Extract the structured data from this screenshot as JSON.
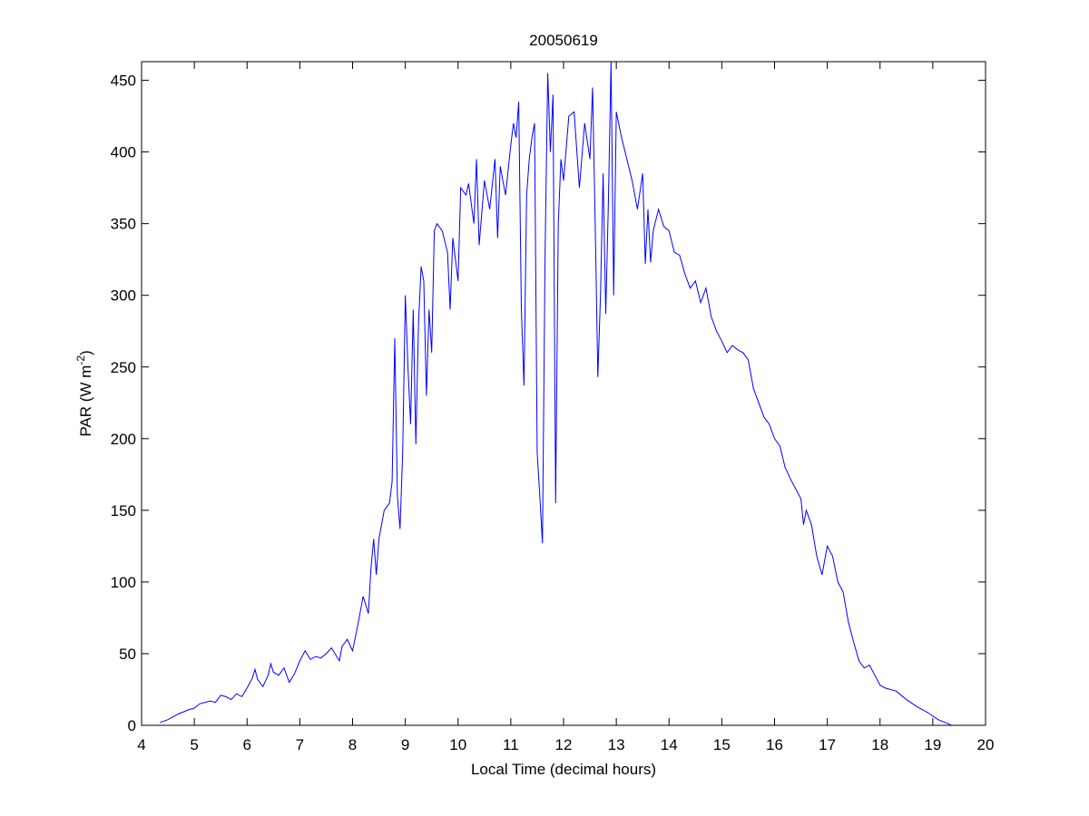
{
  "chart_data": {
    "type": "line",
    "title": "20050619",
    "xlabel": "Local Time (decimal hours)",
    "ylabel": "PAR (W m",
    "ylabel_superscript": "-2",
    "ylabel_end": ")",
    "color": "#0000ff",
    "xlim": [
      4,
      20
    ],
    "xticks": [
      4,
      5,
      6,
      7,
      8,
      9,
      10,
      11,
      12,
      13,
      14,
      15,
      16,
      17,
      18,
      19,
      20
    ],
    "ylim": [
      0,
      463
    ],
    "yticks": [
      0,
      50,
      100,
      150,
      200,
      250,
      300,
      350,
      400,
      450
    ],
    "x": [
      4.35,
      4.5,
      4.7,
      4.9,
      5.0,
      5.1,
      5.3,
      5.4,
      5.5,
      5.6,
      5.7,
      5.8,
      5.9,
      6.0,
      6.1,
      6.15,
      6.2,
      6.3,
      6.4,
      6.45,
      6.5,
      6.6,
      6.7,
      6.8,
      6.9,
      7.0,
      7.1,
      7.2,
      7.3,
      7.4,
      7.5,
      7.6,
      7.7,
      7.75,
      7.8,
      7.9,
      8.0,
      8.1,
      8.2,
      8.3,
      8.35,
      8.4,
      8.45,
      8.5,
      8.6,
      8.7,
      8.75,
      8.8,
      8.85,
      8.9,
      8.95,
      9.0,
      9.05,
      9.1,
      9.15,
      9.2,
      9.25,
      9.3,
      9.35,
      9.4,
      9.45,
      9.5,
      9.55,
      9.6,
      9.7,
      9.8,
      9.85,
      9.9,
      10.0,
      10.05,
      10.15,
      10.2,
      10.3,
      10.35,
      10.4,
      10.5,
      10.6,
      10.7,
      10.75,
      10.8,
      10.9,
      11.0,
      11.05,
      11.1,
      11.15,
      11.2,
      11.25,
      11.3,
      11.35,
      11.4,
      11.45,
      11.5,
      11.55,
      11.6,
      11.65,
      11.7,
      11.75,
      11.8,
      11.85,
      11.9,
      11.95,
      12.0,
      12.1,
      12.2,
      12.3,
      12.4,
      12.5,
      12.55,
      12.6,
      12.65,
      12.7,
      12.75,
      12.8,
      12.85,
      12.9,
      12.95,
      13.0,
      13.1,
      13.2,
      13.3,
      13.4,
      13.5,
      13.55,
      13.6,
      13.65,
      13.7,
      13.8,
      13.9,
      14.0,
      14.1,
      14.2,
      14.3,
      14.4,
      14.5,
      14.6,
      14.7,
      14.8,
      14.9,
      15.0,
      15.1,
      15.2,
      15.3,
      15.4,
      15.5,
      15.6,
      15.7,
      15.8,
      15.9,
      16.0,
      16.1,
      16.2,
      16.3,
      16.4,
      16.5,
      16.55,
      16.6,
      16.7,
      16.8,
      16.9,
      17.0,
      17.1,
      17.2,
      17.3,
      17.4,
      17.5,
      17.6,
      17.7,
      17.8,
      17.9,
      18.0,
      18.1,
      18.3,
      18.5,
      18.7,
      18.9,
      19.1,
      19.3,
      19.35
    ],
    "values": [
      2,
      4,
      8,
      11,
      12,
      15,
      17,
      16,
      21,
      20,
      18,
      22,
      20,
      26,
      33,
      39,
      32,
      27,
      35,
      43,
      37,
      35,
      40,
      30,
      36,
      45,
      52,
      46,
      48,
      47,
      50,
      54,
      48,
      45,
      55,
      60,
      52,
      70,
      90,
      78,
      110,
      130,
      105,
      130,
      150,
      155,
      170,
      270,
      160,
      137,
      190,
      300,
      250,
      210,
      290,
      196,
      280,
      320,
      310,
      230,
      290,
      260,
      345,
      350,
      345,
      330,
      290,
      340,
      310,
      375,
      370,
      378,
      350,
      395,
      335,
      380,
      360,
      395,
      340,
      390,
      370,
      405,
      420,
      410,
      435,
      290,
      237,
      370,
      395,
      410,
      420,
      190,
      160,
      127,
      330,
      455,
      400,
      440,
      155,
      350,
      395,
      380,
      425,
      428,
      375,
      420,
      395,
      445,
      350,
      243,
      300,
      385,
      287,
      365,
      463,
      300,
      428,
      410,
      395,
      380,
      360,
      385,
      322,
      360,
      323,
      345,
      360,
      348,
      345,
      330,
      328,
      315,
      305,
      310,
      295,
      305,
      285,
      275,
      268,
      260,
      265,
      262,
      260,
      255,
      235,
      225,
      215,
      210,
      200,
      195,
      180,
      172,
      165,
      158,
      140,
      150,
      140,
      118,
      105,
      125,
      118,
      100,
      93,
      72,
      58,
      45,
      40,
      42,
      35,
      28,
      26,
      24,
      18,
      13,
      9,
      4,
      1,
      0
    ]
  }
}
